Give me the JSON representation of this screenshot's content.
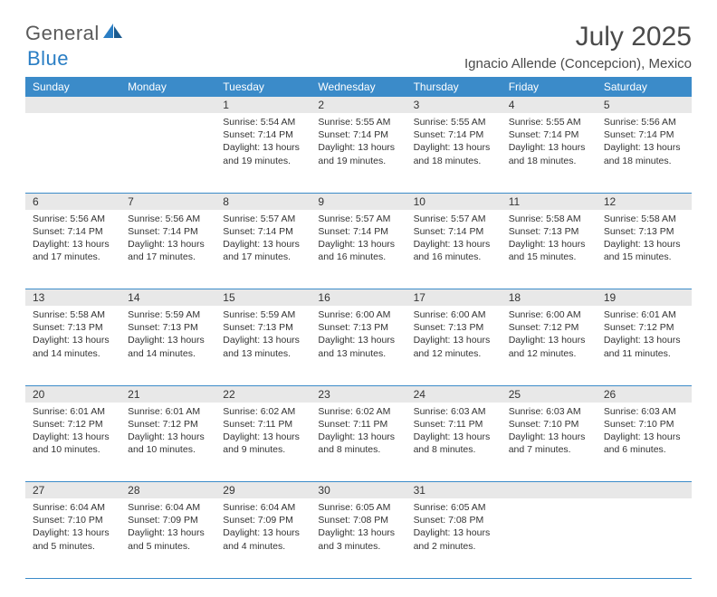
{
  "logo": {
    "text1": "General",
    "text2": "Blue"
  },
  "title": "July 2025",
  "location": "Ignacio Allende (Concepcion), Mexico",
  "weekday_headers": [
    "Sunday",
    "Monday",
    "Tuesday",
    "Wednesday",
    "Thursday",
    "Friday",
    "Saturday"
  ],
  "header_bg": "#3b8bc9",
  "header_fg": "#ffffff",
  "daynum_bg": "#e8e8e8",
  "border_color": "#3b8bc9",
  "font_family": "Arial, Helvetica, sans-serif",
  "month_title_fontsize": 30,
  "location_fontsize": 15,
  "th_fontsize": 12,
  "cell_fontsize": 10.5,
  "weeks": [
    [
      null,
      null,
      {
        "n": "1",
        "sr": "Sunrise: 5:54 AM",
        "ss": "Sunset: 7:14 PM",
        "dl": "Daylight: 13 hours and 19 minutes."
      },
      {
        "n": "2",
        "sr": "Sunrise: 5:55 AM",
        "ss": "Sunset: 7:14 PM",
        "dl": "Daylight: 13 hours and 19 minutes."
      },
      {
        "n": "3",
        "sr": "Sunrise: 5:55 AM",
        "ss": "Sunset: 7:14 PM",
        "dl": "Daylight: 13 hours and 18 minutes."
      },
      {
        "n": "4",
        "sr": "Sunrise: 5:55 AM",
        "ss": "Sunset: 7:14 PM",
        "dl": "Daylight: 13 hours and 18 minutes."
      },
      {
        "n": "5",
        "sr": "Sunrise: 5:56 AM",
        "ss": "Sunset: 7:14 PM",
        "dl": "Daylight: 13 hours and 18 minutes."
      }
    ],
    [
      {
        "n": "6",
        "sr": "Sunrise: 5:56 AM",
        "ss": "Sunset: 7:14 PM",
        "dl": "Daylight: 13 hours and 17 minutes."
      },
      {
        "n": "7",
        "sr": "Sunrise: 5:56 AM",
        "ss": "Sunset: 7:14 PM",
        "dl": "Daylight: 13 hours and 17 minutes."
      },
      {
        "n": "8",
        "sr": "Sunrise: 5:57 AM",
        "ss": "Sunset: 7:14 PM",
        "dl": "Daylight: 13 hours and 17 minutes."
      },
      {
        "n": "9",
        "sr": "Sunrise: 5:57 AM",
        "ss": "Sunset: 7:14 PM",
        "dl": "Daylight: 13 hours and 16 minutes."
      },
      {
        "n": "10",
        "sr": "Sunrise: 5:57 AM",
        "ss": "Sunset: 7:14 PM",
        "dl": "Daylight: 13 hours and 16 minutes."
      },
      {
        "n": "11",
        "sr": "Sunrise: 5:58 AM",
        "ss": "Sunset: 7:13 PM",
        "dl": "Daylight: 13 hours and 15 minutes."
      },
      {
        "n": "12",
        "sr": "Sunrise: 5:58 AM",
        "ss": "Sunset: 7:13 PM",
        "dl": "Daylight: 13 hours and 15 minutes."
      }
    ],
    [
      {
        "n": "13",
        "sr": "Sunrise: 5:58 AM",
        "ss": "Sunset: 7:13 PM",
        "dl": "Daylight: 13 hours and 14 minutes."
      },
      {
        "n": "14",
        "sr": "Sunrise: 5:59 AM",
        "ss": "Sunset: 7:13 PM",
        "dl": "Daylight: 13 hours and 14 minutes."
      },
      {
        "n": "15",
        "sr": "Sunrise: 5:59 AM",
        "ss": "Sunset: 7:13 PM",
        "dl": "Daylight: 13 hours and 13 minutes."
      },
      {
        "n": "16",
        "sr": "Sunrise: 6:00 AM",
        "ss": "Sunset: 7:13 PM",
        "dl": "Daylight: 13 hours and 13 minutes."
      },
      {
        "n": "17",
        "sr": "Sunrise: 6:00 AM",
        "ss": "Sunset: 7:13 PM",
        "dl": "Daylight: 13 hours and 12 minutes."
      },
      {
        "n": "18",
        "sr": "Sunrise: 6:00 AM",
        "ss": "Sunset: 7:12 PM",
        "dl": "Daylight: 13 hours and 12 minutes."
      },
      {
        "n": "19",
        "sr": "Sunrise: 6:01 AM",
        "ss": "Sunset: 7:12 PM",
        "dl": "Daylight: 13 hours and 11 minutes."
      }
    ],
    [
      {
        "n": "20",
        "sr": "Sunrise: 6:01 AM",
        "ss": "Sunset: 7:12 PM",
        "dl": "Daylight: 13 hours and 10 minutes."
      },
      {
        "n": "21",
        "sr": "Sunrise: 6:01 AM",
        "ss": "Sunset: 7:12 PM",
        "dl": "Daylight: 13 hours and 10 minutes."
      },
      {
        "n": "22",
        "sr": "Sunrise: 6:02 AM",
        "ss": "Sunset: 7:11 PM",
        "dl": "Daylight: 13 hours and 9 minutes."
      },
      {
        "n": "23",
        "sr": "Sunrise: 6:02 AM",
        "ss": "Sunset: 7:11 PM",
        "dl": "Daylight: 13 hours and 8 minutes."
      },
      {
        "n": "24",
        "sr": "Sunrise: 6:03 AM",
        "ss": "Sunset: 7:11 PM",
        "dl": "Daylight: 13 hours and 8 minutes."
      },
      {
        "n": "25",
        "sr": "Sunrise: 6:03 AM",
        "ss": "Sunset: 7:10 PM",
        "dl": "Daylight: 13 hours and 7 minutes."
      },
      {
        "n": "26",
        "sr": "Sunrise: 6:03 AM",
        "ss": "Sunset: 7:10 PM",
        "dl": "Daylight: 13 hours and 6 minutes."
      }
    ],
    [
      {
        "n": "27",
        "sr": "Sunrise: 6:04 AM",
        "ss": "Sunset: 7:10 PM",
        "dl": "Daylight: 13 hours and 5 minutes."
      },
      {
        "n": "28",
        "sr": "Sunrise: 6:04 AM",
        "ss": "Sunset: 7:09 PM",
        "dl": "Daylight: 13 hours and 5 minutes."
      },
      {
        "n": "29",
        "sr": "Sunrise: 6:04 AM",
        "ss": "Sunset: 7:09 PM",
        "dl": "Daylight: 13 hours and 4 minutes."
      },
      {
        "n": "30",
        "sr": "Sunrise: 6:05 AM",
        "ss": "Sunset: 7:08 PM",
        "dl": "Daylight: 13 hours and 3 minutes."
      },
      {
        "n": "31",
        "sr": "Sunrise: 6:05 AM",
        "ss": "Sunset: 7:08 PM",
        "dl": "Daylight: 13 hours and 2 minutes."
      },
      null,
      null
    ]
  ]
}
